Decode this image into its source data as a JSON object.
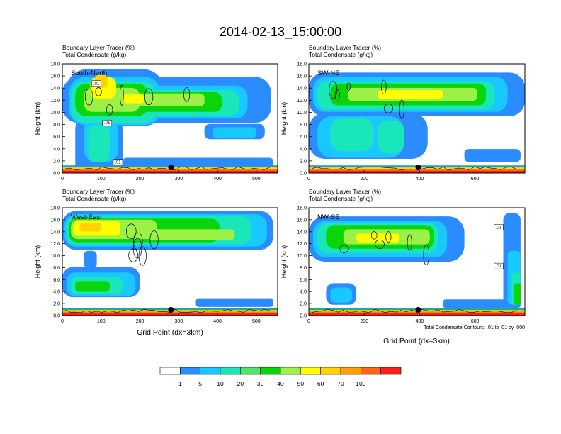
{
  "figure_title": "2014-02-13_15:00:00",
  "panel_header": {
    "line1": "Boundary Layer Tracer",
    "unit1": "(%)",
    "line2": "Total Condensate",
    "unit2": "(g/kg)"
  },
  "ylabel": "Height (km)",
  "xlabel": "Grid Point (dx=3km)",
  "contour_note": "Total Condensate Contours: .01 to .01 by .000",
  "chart_data": [
    {
      "type": "heatmap",
      "name": "South-North",
      "xlim": [
        0,
        555
      ],
      "ylim": [
        0,
        18
      ],
      "xticks": [
        0,
        100,
        200,
        300,
        400,
        500
      ],
      "yticks": [
        "0.0",
        "2.0",
        "4.0",
        "6.0",
        "8.0",
        "10.0",
        "12.0",
        "14.0",
        "16.0",
        "18.0"
      ],
      "contour_labels": [
        ".01",
        ".01",
        ".01"
      ],
      "marker_x": 280,
      "grid": false
    },
    {
      "type": "heatmap",
      "name": "SW-NE",
      "xlim": [
        0,
        780
      ],
      "ylim": [
        0,
        18
      ],
      "xticks": [
        0,
        200,
        400,
        600
      ],
      "yticks": [
        "0.0",
        "2.0",
        "4.0",
        "6.0",
        "8.0",
        "10.0",
        "12.0",
        "14.0",
        "16.0",
        "18.0"
      ],
      "contour_labels": [],
      "marker_x": 395,
      "grid": false
    },
    {
      "type": "heatmap",
      "name": "West-East",
      "xlim": [
        0,
        555
      ],
      "ylim": [
        0,
        18
      ],
      "xticks": [
        0,
        100,
        200,
        300,
        400,
        500
      ],
      "yticks": [
        "0.0",
        "2.0",
        "4.0",
        "6.0",
        "8.0",
        "10.0",
        "12.0",
        "14.0",
        "16.0",
        "18.0"
      ],
      "contour_labels": [],
      "marker_x": 280,
      "grid": false
    },
    {
      "type": "heatmap",
      "name": "NW-SE",
      "xlim": [
        0,
        780
      ],
      "ylim": [
        0,
        18
      ],
      "xticks": [
        0,
        200,
        400,
        600
      ],
      "yticks": [
        "0.0",
        "2.0",
        "4.0",
        "6.0",
        "8.0",
        "10.0",
        "12.0",
        "14.0",
        "16.0",
        "18.0"
      ],
      "contour_labels": [
        ".01",
        ".01"
      ],
      "marker_x": 395,
      "grid": false
    }
  ],
  "colorbar": {
    "labels": [
      "1",
      "5",
      "10",
      "20",
      "30",
      "40",
      "50",
      "60",
      "70",
      "100"
    ],
    "colors": [
      "#ffffff",
      "#2b8cff",
      "#19c8ff",
      "#19e6b9",
      "#4fe36b",
      "#0ad40a",
      "#9cf046",
      "#ffff00",
      "#ffd200",
      "#ffa000",
      "#ff6419",
      "#ff1e1e"
    ]
  },
  "palette": {
    "blue": "#2b8cff",
    "cyan": "#19c8ff",
    "teal": "#19e6b9",
    "mint": "#4fe36b",
    "green": "#0ad40a",
    "lime": "#9cf046",
    "yellow": "#ffff00",
    "gold": "#ffd200",
    "orange": "#ffa000",
    "redorange": "#ff6419",
    "red": "#ff1e1e"
  }
}
